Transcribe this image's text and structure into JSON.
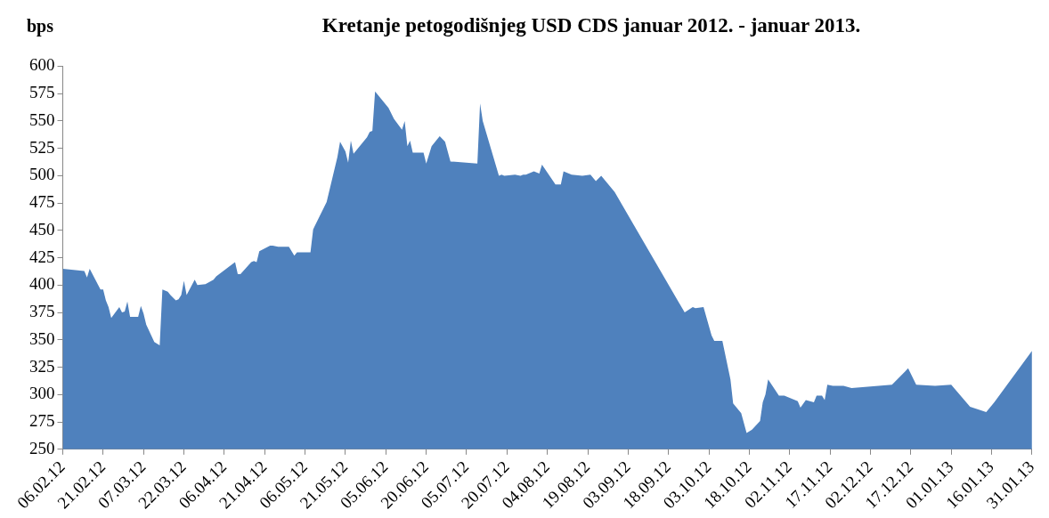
{
  "chart_data": {
    "type": "area",
    "title": "Kretanje petogodišnjeg USD CDS januar 2012. - januar 2013.",
    "ylabel": "bps",
    "x": [
      "2012-02-06",
      "2012-02-14",
      "2012-02-15",
      "2012-02-16",
      "2012-02-20",
      "2012-02-21",
      "2012-02-22",
      "2012-02-23",
      "2012-02-24",
      "2012-02-27",
      "2012-02-28",
      "2012-02-29",
      "2012-03-01",
      "2012-03-02",
      "2012-03-05",
      "2012-03-06",
      "2012-03-07",
      "2012-03-08",
      "2012-03-11",
      "2012-03-13",
      "2012-03-14",
      "2012-03-16",
      "2012-03-17",
      "2012-03-19",
      "2012-03-20",
      "2012-03-21",
      "2012-03-22",
      "2012-03-23",
      "2012-03-26",
      "2012-03-27",
      "2012-03-30",
      "2012-04-02",
      "2012-04-03",
      "2012-04-10",
      "2012-04-11",
      "2012-04-12",
      "2012-04-16",
      "2012-04-17",
      "2012-04-18",
      "2012-04-19",
      "2012-04-23",
      "2012-04-24",
      "2012-04-26",
      "2012-04-30",
      "2012-05-02",
      "2012-05-03",
      "2012-05-08",
      "2012-05-09",
      "2012-05-14",
      "2012-05-18",
      "2012-05-19",
      "2012-05-21",
      "2012-05-22",
      "2012-05-23",
      "2012-05-24",
      "2012-05-29",
      "2012-05-30",
      "2012-05-31",
      "2012-06-01",
      "2012-06-06",
      "2012-06-08",
      "2012-06-11",
      "2012-06-12",
      "2012-06-13",
      "2012-06-14",
      "2012-06-15",
      "2012-06-19",
      "2012-06-20",
      "2012-06-22",
      "2012-06-25",
      "2012-06-27",
      "2012-06-29",
      "2012-07-09",
      "2012-07-10",
      "2012-07-11",
      "2012-07-17",
      "2012-07-18",
      "2012-07-19",
      "2012-07-23",
      "2012-07-25",
      "2012-07-26",
      "2012-07-27",
      "2012-07-30",
      "2012-08-01",
      "2012-08-02",
      "2012-08-07",
      "2012-08-09",
      "2012-08-10",
      "2012-08-13",
      "2012-08-17",
      "2012-08-20",
      "2012-08-22",
      "2012-08-24",
      "2012-08-29",
      "2012-09-24",
      "2012-09-27",
      "2012-09-28",
      "2012-10-01",
      "2012-10-04",
      "2012-10-05",
      "2012-10-08",
      "2012-10-11",
      "2012-10-12",
      "2012-10-15",
      "2012-10-17",
      "2012-10-19",
      "2012-10-22",
      "2012-10-23",
      "2012-10-24",
      "2012-10-25",
      "2012-10-29",
      "2012-10-31",
      "2012-11-05",
      "2012-11-06",
      "2012-11-08",
      "2012-11-11",
      "2012-11-12",
      "2012-11-14",
      "2012-11-15",
      "2012-11-16",
      "2012-11-18",
      "2012-11-22",
      "2012-11-25",
      "2012-12-10",
      "2012-12-16",
      "2012-12-19",
      "2012-12-26",
      "2013-01-01",
      "2013-01-08",
      "2013-01-14",
      "2013-01-17",
      "2013-01-31"
    ],
    "values": [
      415,
      413,
      407,
      415,
      396,
      396,
      386,
      380,
      370,
      380,
      375,
      376,
      385,
      371,
      371,
      381,
      374,
      364,
      348,
      345,
      396,
      394,
      391,
      386,
      387,
      391,
      404,
      391,
      405,
      400,
      401,
      405,
      408,
      421,
      410,
      410,
      421,
      422,
      421,
      431,
      436,
      436,
      435,
      435,
      427,
      430,
      430,
      451,
      476,
      517,
      531,
      522,
      512,
      532,
      520,
      535,
      540,
      541,
      577,
      562,
      552,
      542,
      550,
      527,
      532,
      521,
      521,
      511,
      527,
      536,
      531,
      513,
      511,
      566,
      550,
      500,
      501,
      500,
      501,
      500,
      501,
      501,
      504,
      502,
      510,
      492,
      492,
      504,
      501,
      500,
      501,
      495,
      500,
      485,
      375,
      380,
      379,
      380,
      354,
      349,
      349,
      314,
      292,
      283,
      265,
      268,
      276,
      293,
      300,
      314,
      299,
      299,
      294,
      288,
      295,
      293,
      299,
      299,
      295,
      309,
      308,
      308,
      306,
      309,
      324,
      309,
      308,
      309,
      289,
      284,
      293,
      340
    ],
    "color": "#4f81bd",
    "ylim": [
      250,
      600
    ],
    "yticks": [
      250,
      275,
      300,
      325,
      350,
      375,
      400,
      425,
      450,
      475,
      500,
      525,
      550,
      575,
      600
    ],
    "xlim": [
      "2012-02-06",
      "2013-01-31"
    ],
    "xticks": [
      {
        "value": "2012-02-06",
        "label": "06.02.12"
      },
      {
        "value": "2012-02-21",
        "label": "21.02.12"
      },
      {
        "value": "2012-03-07",
        "label": "07.03.12"
      },
      {
        "value": "2012-03-22",
        "label": "22.03.12"
      },
      {
        "value": "2012-04-06",
        "label": "06.04.12"
      },
      {
        "value": "2012-04-21",
        "label": "21.04.12"
      },
      {
        "value": "2012-05-06",
        "label": "06.05.12"
      },
      {
        "value": "2012-05-21",
        "label": "21.05.12"
      },
      {
        "value": "2012-06-05",
        "label": "05.06.12"
      },
      {
        "value": "2012-06-20",
        "label": "20.06.12"
      },
      {
        "value": "2012-07-05",
        "label": "05.07.12"
      },
      {
        "value": "2012-07-20",
        "label": "20.07.12"
      },
      {
        "value": "2012-08-04",
        "label": "04.08.12"
      },
      {
        "value": "2012-08-19",
        "label": "19.08.12"
      },
      {
        "value": "2012-09-03",
        "label": "03.09.12"
      },
      {
        "value": "2012-09-18",
        "label": "18.09.12"
      },
      {
        "value": "2012-10-03",
        "label": "03.10.12"
      },
      {
        "value": "2012-10-18",
        "label": "18.10.12"
      },
      {
        "value": "2012-11-02",
        "label": "02.11.12"
      },
      {
        "value": "2012-11-17",
        "label": "17.11.12"
      },
      {
        "value": "2012-12-02",
        "label": "02.12.12"
      },
      {
        "value": "2012-12-17",
        "label": "17.12.12"
      },
      {
        "value": "2013-01-01",
        "label": "01.01.13"
      },
      {
        "value": "2013-01-16",
        "label": "16.01.13"
      },
      {
        "value": "2013-01-31",
        "label": "31.01.13"
      }
    ],
    "grid": false,
    "legend": false
  }
}
